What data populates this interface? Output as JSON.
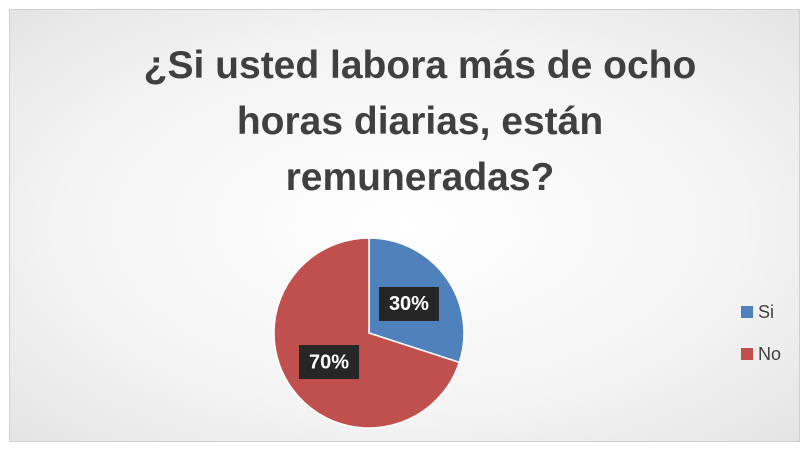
{
  "chart_data": {
    "type": "pie",
    "title": "¿Si usted labora más de ocho horas diarias, están remuneradas?",
    "categories": [
      "Si",
      "No"
    ],
    "values": [
      30,
      70
    ],
    "value_labels": [
      "30%",
      "70%"
    ],
    "colors": [
      "#4f81bd",
      "#c0504d"
    ],
    "legend": "right"
  }
}
